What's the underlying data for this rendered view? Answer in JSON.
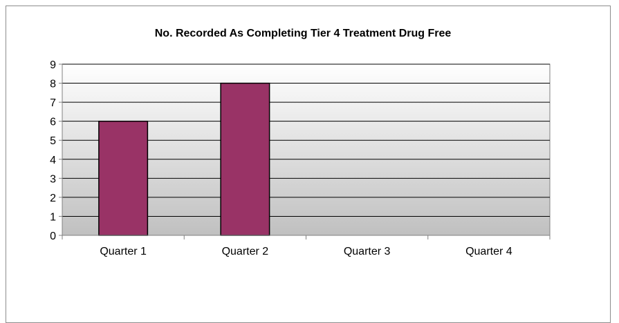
{
  "chart_data": {
    "type": "bar",
    "title": "No. Recorded As Completing Tier 4 Treatment Drug Free",
    "categories": [
      "Quarter 1",
      "Quarter 2",
      "Quarter 3",
      "Quarter 4"
    ],
    "values": [
      6,
      8,
      null,
      null
    ],
    "xlabel": "",
    "ylabel": "",
    "ylim": [
      0,
      9
    ],
    "yticks": [
      "0",
      "1",
      "2",
      "3",
      "4",
      "5",
      "6",
      "7",
      "8",
      "9"
    ],
    "grid": true,
    "legend": "none",
    "colors": {
      "bar": "#993366",
      "bar_border": "#000000",
      "plot_gradient_top": "#ffffff",
      "plot_gradient_bottom": "#c0c0c0",
      "gridline": "#000000",
      "axis": "#808080"
    }
  }
}
